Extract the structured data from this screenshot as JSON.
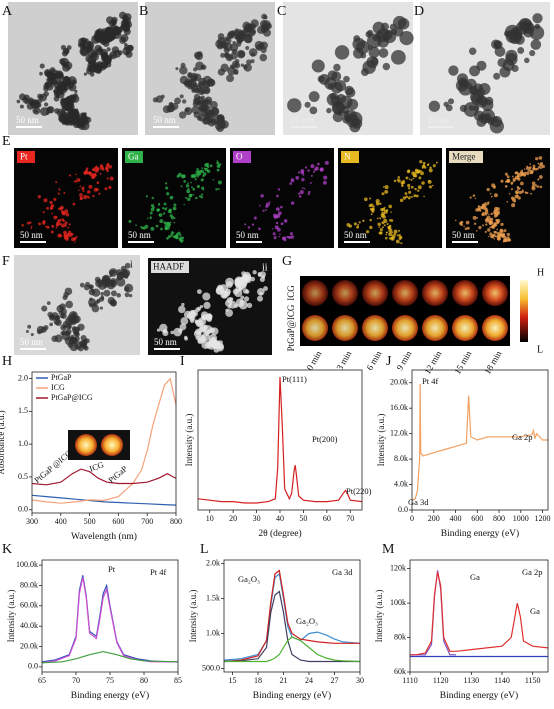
{
  "tem": [
    {
      "label": "A",
      "scale": "50 nm"
    },
    {
      "label": "B",
      "scale": "50 nm"
    },
    {
      "label": "C",
      "scale": "20 nm"
    },
    {
      "label": "D",
      "scale": "20 nm"
    }
  ],
  "mapping": {
    "label": "E",
    "maps": [
      {
        "element": "Pt",
        "color": "#e8261f",
        "scale": "50 nm"
      },
      {
        "element": "Ga",
        "color": "#2fb24a",
        "scale": "50 nm"
      },
      {
        "element": "O",
        "color": "#b040c8",
        "scale": "50 nm"
      },
      {
        "element": "N",
        "color": "#e8b820",
        "scale": "50 nm"
      },
      {
        "element": "Merge",
        "color": "#f0a050",
        "scale": "50 nm"
      }
    ]
  },
  "f_panel": {
    "label": "F",
    "images": [
      {
        "label": "i",
        "scale": "50 nm"
      },
      {
        "label": "ii",
        "tag": "HAADF",
        "scale": "50 nm"
      }
    ]
  },
  "thermal": {
    "label": "G",
    "rows": [
      "ICG",
      "PtGaP@ICG"
    ],
    "times": [
      "0 min",
      "3 min",
      "6 min",
      "9 min",
      "12 min",
      "15 min",
      "18 min"
    ],
    "colorbar": [
      "H",
      "L"
    ]
  },
  "chart_data": [
    {
      "type": "line",
      "label": "H",
      "xlabel": "Wavelength (nm)",
      "ylabel": "Absorbance (a.u.)",
      "xlim": [
        300,
        800
      ],
      "xticks": [
        300,
        400,
        500,
        600,
        700,
        800
      ],
      "ylim": [
        -0.05,
        2.1
      ],
      "yticks": [
        {
          "value": 0,
          "label": "0.0"
        },
        {
          "value": 0.5,
          "label": "0.5"
        },
        {
          "value": 1,
          "label": "1.0"
        },
        {
          "value": 1.5,
          "label": "1.5"
        },
        {
          "value": 2,
          "label": "2.0"
        }
      ],
      "legend": "upper left",
      "annotations": [
        "PtGaP @ICG",
        "ICG",
        "PtGaP"
      ],
      "series": [
        {
          "name": "PtGaP",
          "color": "#2e5fb0",
          "x": [
            300,
            350,
            400,
            450,
            500,
            550,
            600,
            650,
            700,
            750,
            800
          ],
          "values": [
            0.22,
            0.2,
            0.18,
            0.16,
            0.14,
            0.12,
            0.11,
            0.1,
            0.09,
            0.08,
            0.07
          ]
        },
        {
          "name": "ICG",
          "color": "#f4a27a",
          "x": [
            300,
            350,
            400,
            450,
            500,
            550,
            600,
            650,
            680,
            700,
            720,
            740,
            760,
            780,
            790,
            800
          ],
          "values": [
            0.15,
            0.12,
            0.1,
            0.12,
            0.15,
            0.14,
            0.2,
            0.4,
            0.6,
            0.9,
            1.3,
            1.6,
            1.9,
            2.0,
            1.8,
            1.6
          ]
        },
        {
          "name": "PtGaP@ICG",
          "color": "#a0182e",
          "x": [
            300,
            350,
            400,
            440,
            470,
            500,
            530,
            560,
            600,
            650,
            700,
            740,
            770,
            790,
            800
          ],
          "values": [
            0.4,
            0.38,
            0.42,
            0.55,
            0.62,
            0.58,
            0.48,
            0.42,
            0.4,
            0.4,
            0.42,
            0.48,
            0.55,
            0.5,
            0.48
          ]
        }
      ]
    },
    {
      "type": "line",
      "label": "I",
      "xlabel": "2θ (degree)",
      "ylabel": "Intensity (a.u.)",
      "xlim": [
        5,
        75
      ],
      "xticks": [
        10,
        20,
        30,
        40,
        50,
        60,
        70
      ],
      "ylim": [
        0,
        100
      ],
      "annotations": [
        "Pt(111)",
        "Pt(200)",
        "Pt(220)"
      ],
      "series": [
        {
          "color": "#d62020",
          "x": [
            5,
            10,
            15,
            20,
            25,
            30,
            35,
            38,
            39,
            40,
            41,
            42,
            44,
            45,
            46,
            46.5,
            47,
            48,
            50,
            55,
            60,
            65,
            67,
            68,
            69,
            70,
            75
          ],
          "values": [
            8,
            7,
            6,
            6,
            5,
            5,
            6,
            8,
            30,
            95,
            60,
            15,
            8,
            12,
            28,
            32,
            25,
            10,
            7,
            6,
            6,
            7,
            12,
            14,
            11,
            7,
            6
          ]
        }
      ]
    },
    {
      "type": "line",
      "label": "J",
      "xlabel": "Binding energy (eV)",
      "ylabel": "Intensity (a.u.)",
      "xlim": [
        0,
        1250
      ],
      "xticks": [
        0,
        200,
        400,
        600,
        800,
        1000,
        1200
      ],
      "ylim": [
        0,
        22000
      ],
      "yticks": [
        {
          "value": 0,
          "label": "0.0"
        },
        {
          "value": 4000,
          "label": "4.0k"
        },
        {
          "value": 8000,
          "label": "8.0k"
        },
        {
          "value": 12000,
          "label": "12.0k"
        },
        {
          "value": 16000,
          "label": "16.0k"
        },
        {
          "value": 20000,
          "label": "20.0k"
        }
      ],
      "annotations": [
        "Pt 4f",
        "Ga 2p",
        "Ga 3d"
      ],
      "series": [
        {
          "color": "#f4a060",
          "x": [
            0,
            30,
            50,
            70,
            75,
            80,
            100,
            200,
            300,
            400,
            500,
            520,
            540,
            600,
            700,
            800,
            900,
            1000,
            1100,
            1117,
            1130,
            1145,
            1200,
            1250
          ],
          "values": [
            1500,
            1800,
            3000,
            8000,
            19800,
            9000,
            8500,
            9000,
            9500,
            10000,
            10500,
            18000,
            11500,
            11000,
            11500,
            11500,
            11500,
            11500,
            11800,
            12500,
            11200,
            12000,
            11000,
            11000
          ]
        }
      ]
    },
    {
      "type": "line",
      "label": "K",
      "xlabel": "Binding energy (eV)",
      "ylabel": "Intensity (a.u.)",
      "xlim": [
        65,
        85
      ],
      "xticks": [
        65,
        70,
        75,
        80,
        85
      ],
      "ylim": [
        -5000,
        105000
      ],
      "yticks": [
        {
          "value": 0,
          "label": "0.0"
        },
        {
          "value": 20000,
          "label": "20.0k"
        },
        {
          "value": 40000,
          "label": "40.0k"
        },
        {
          "value": 60000,
          "label": "60.0k"
        },
        {
          "value": 80000,
          "label": "80.0k"
        },
        {
          "value": 100000,
          "label": "100.0k"
        }
      ],
      "annotations": [
        "Pt",
        "Pt 4f"
      ],
      "series": [
        {
          "color": "#3050c0",
          "x": [
            65,
            67,
            69,
            70,
            70.5,
            71,
            71.5,
            72,
            73,
            73.5,
            74,
            74.5,
            75,
            76,
            77,
            79,
            81,
            83,
            85
          ],
          "values": [
            5000,
            7000,
            12000,
            30000,
            75000,
            90000,
            70000,
            35000,
            30000,
            50000,
            72000,
            80000,
            60000,
            25000,
            12000,
            8000,
            6000,
            5000,
            5000
          ]
        },
        {
          "color": "#d050d0",
          "x": [
            65,
            67,
            69,
            70,
            70.5,
            71,
            71.5,
            72,
            73,
            73.5,
            74,
            74.5,
            75,
            76,
            77,
            79,
            81,
            83,
            85
          ],
          "values": [
            4000,
            6000,
            11000,
            28000,
            72000,
            88000,
            68000,
            33000,
            28000,
            47000,
            68000,
            76000,
            58000,
            24000,
            11000,
            7000,
            5000,
            5000,
            5000
          ]
        },
        {
          "color": "#40a040",
          "x": [
            65,
            68,
            70,
            72,
            74,
            76,
            78,
            80,
            85
          ],
          "values": [
            4000,
            5000,
            8000,
            12000,
            15000,
            12000,
            8000,
            6000,
            5000
          ]
        }
      ]
    },
    {
      "type": "line",
      "label": "L",
      "xlabel": "Binding energy (eV)",
      "ylabel": "Intensity (a.u.)",
      "xlim": [
        14,
        30
      ],
      "xticks": [
        15,
        18,
        21,
        24,
        27,
        30
      ],
      "ylim": [
        450,
        2050
      ],
      "yticks": [
        {
          "value": 500,
          "label": "500.0"
        },
        {
          "value": 1000,
          "label": "1.0k"
        },
        {
          "value": 1500,
          "label": "1.5k"
        },
        {
          "value": 2000,
          "label": "2.0k"
        }
      ],
      "annotations": [
        "Ga₂O₃",
        "Ga₂O₃",
        "Ga 3d"
      ],
      "series": [
        {
          "color": "#3a8fd0",
          "x": [
            14,
            16,
            18,
            19,
            19.5,
            20,
            20.5,
            21,
            21.5,
            22,
            23,
            24,
            25,
            26,
            27,
            28,
            30
          ],
          "values": [
            620,
            640,
            700,
            900,
            1400,
            1800,
            1850,
            1500,
            1100,
            950,
            900,
            1000,
            1020,
            980,
            920,
            880,
            860
          ]
        },
        {
          "color": "#d02020",
          "x": [
            14,
            16,
            18,
            19,
            19.5,
            20,
            20.5,
            21,
            21.5,
            22,
            23,
            24,
            25,
            26,
            27,
            28,
            30
          ],
          "values": [
            600,
            620,
            680,
            900,
            1450,
            1850,
            1900,
            1550,
            1150,
            1000,
            920,
            900,
            880,
            870,
            860,
            860,
            860
          ]
        },
        {
          "color": "#404060",
          "x": [
            14,
            16,
            18,
            19,
            19.5,
            20,
            20.5,
            21,
            21.5,
            22,
            23,
            24,
            25,
            26,
            27,
            28,
            30
          ],
          "values": [
            600,
            610,
            640,
            800,
            1300,
            1550,
            1600,
            1300,
            900,
            700,
            620,
            600,
            600,
            600,
            600,
            600,
            600
          ]
        },
        {
          "color": "#50b030",
          "x": [
            14,
            16,
            18,
            19,
            19.5,
            20,
            20.5,
            21,
            21.5,
            22,
            23,
            24,
            25,
            26,
            27,
            28,
            30
          ],
          "values": [
            600,
            600,
            600,
            600,
            620,
            650,
            700,
            800,
            900,
            950,
            900,
            800,
            700,
            650,
            620,
            610,
            600
          ]
        }
      ]
    },
    {
      "type": "line",
      "label": "M",
      "xlabel": "Binding energy (eV)",
      "ylabel": "Intensity (a.u.)",
      "xlim": [
        1110,
        1155
      ],
      "xticks": [
        1110,
        1120,
        1130,
        1140,
        1150
      ],
      "ylim": [
        60000,
        125000
      ],
      "yticks": [
        {
          "value": 60000,
          "label": "60k"
        },
        {
          "value": 80000,
          "label": "80k"
        },
        {
          "value": 100000,
          "label": "100k"
        },
        {
          "value": 120000,
          "label": "120k"
        }
      ],
      "annotations": [
        "Ga 2p",
        "Ga",
        "Ga"
      ],
      "series": [
        {
          "color": "#3040c0",
          "x": [
            1110,
            1155
          ],
          "values": [
            69000,
            69000
          ]
        },
        {
          "color": "#8050c0",
          "x": [
            1110,
            1115,
            1117,
            1118,
            1119,
            1120,
            1121,
            1123,
            1125
          ],
          "values": [
            70000,
            70000,
            76000,
            104000,
            119000,
            108000,
            78000,
            70000,
            70000
          ]
        },
        {
          "color": "#e03030",
          "x": [
            1110,
            1112,
            1115,
            1117,
            1118,
            1119,
            1120,
            1121,
            1123,
            1125,
            1130,
            1135,
            1140,
            1143,
            1145,
            1146,
            1147,
            1150,
            1155
          ],
          "values": [
            70000,
            70000,
            71000,
            78000,
            105000,
            118000,
            110000,
            80000,
            72000,
            72000,
            73000,
            74000,
            75000,
            80000,
            100000,
            92000,
            78000,
            75000,
            74000
          ]
        }
      ]
    }
  ]
}
